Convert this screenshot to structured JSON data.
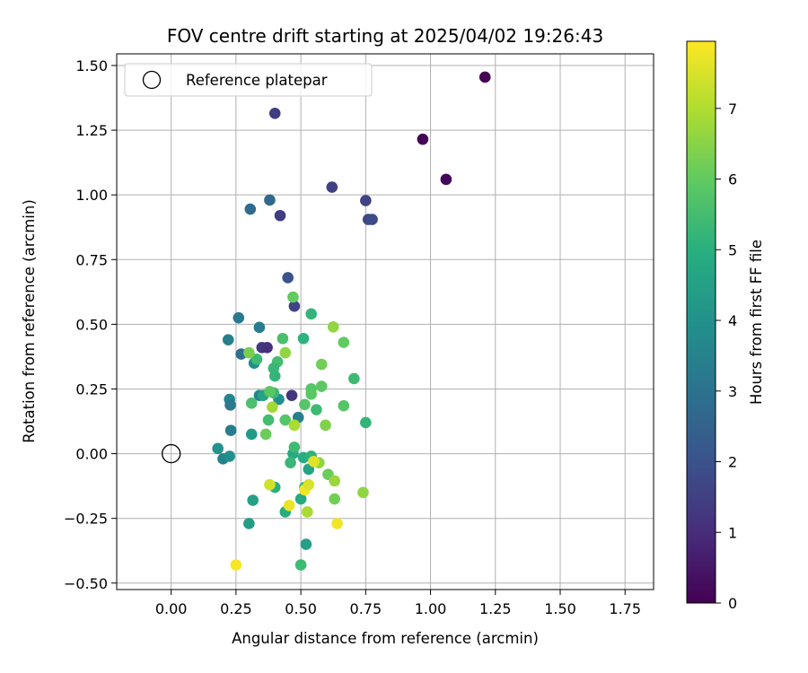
{
  "chart_data": {
    "type": "scatter",
    "title": "FOV centre drift starting at 2025/04/02 19:26:43",
    "xlabel": "Angular distance from reference (arcmin)",
    "ylabel": "Rotation from reference (arcmin)",
    "xlim": [
      -0.21,
      1.86
    ],
    "ylim": [
      -0.525,
      1.545
    ],
    "xticks": [
      "0.00",
      "0.25",
      "0.50",
      "0.75",
      "1.00",
      "1.25",
      "1.50",
      "1.75"
    ],
    "xtick_values": [
      0,
      0.25,
      0.5,
      0.75,
      1.0,
      1.25,
      1.5,
      1.75
    ],
    "yticks": [
      "−0.50",
      "−0.25",
      "0.00",
      "0.25",
      "0.50",
      "0.75",
      "1.00",
      "1.25",
      "1.50"
    ],
    "ytick_values": [
      -0.5,
      -0.25,
      0,
      0.25,
      0.5,
      0.75,
      1.0,
      1.25,
      1.5
    ],
    "grid": true,
    "legend": {
      "placement": "top-left",
      "label": "Reference platepar"
    },
    "reference_point": {
      "x": 0.0,
      "y": 0.0
    },
    "colorbar": {
      "label": "Hours from first FF file",
      "colormap": "viridis",
      "range": [
        0,
        7.95
      ],
      "ticks": [
        "0",
        "1",
        "2",
        "3",
        "4",
        "5",
        "6",
        "7"
      ],
      "tick_values": [
        0,
        1,
        2,
        3,
        4,
        5,
        6,
        7
      ]
    },
    "points": [
      {
        "x": 1.21,
        "y": 1.455,
        "h": 0.0
      },
      {
        "x": 0.97,
        "y": 1.215,
        "h": 0.1
      },
      {
        "x": 1.06,
        "y": 1.06,
        "h": 0.15
      },
      {
        "x": 0.4,
        "y": 1.315,
        "h": 1.4
      },
      {
        "x": 0.62,
        "y": 1.03,
        "h": 1.5
      },
      {
        "x": 0.75,
        "y": 0.978,
        "h": 1.6
      },
      {
        "x": 0.42,
        "y": 0.92,
        "h": 1.4
      },
      {
        "x": 0.76,
        "y": 0.905,
        "h": 1.7
      },
      {
        "x": 0.775,
        "y": 0.905,
        "h": 1.8
      },
      {
        "x": 0.38,
        "y": 0.98,
        "h": 2.7
      },
      {
        "x": 0.305,
        "y": 0.945,
        "h": 2.8
      },
      {
        "x": 0.45,
        "y": 0.68,
        "h": 2.0
      },
      {
        "x": 0.475,
        "y": 0.57,
        "h": 1.6
      },
      {
        "x": 0.35,
        "y": 0.41,
        "h": 1.3
      },
      {
        "x": 0.37,
        "y": 0.41,
        "h": 1.1
      },
      {
        "x": 0.465,
        "y": 0.225,
        "h": 1.2
      },
      {
        "x": 0.26,
        "y": 0.525,
        "h": 3.2
      },
      {
        "x": 0.34,
        "y": 0.488,
        "h": 3.3
      },
      {
        "x": 0.22,
        "y": 0.44,
        "h": 3.4
      },
      {
        "x": 0.27,
        "y": 0.385,
        "h": 2.9
      },
      {
        "x": 0.32,
        "y": 0.35,
        "h": 3.8
      },
      {
        "x": 0.225,
        "y": 0.21,
        "h": 3.6
      },
      {
        "x": 0.228,
        "y": 0.188,
        "h": 3.2
      },
      {
        "x": 0.23,
        "y": 0.09,
        "h": 3.3
      },
      {
        "x": 0.34,
        "y": 0.225,
        "h": 3.6
      },
      {
        "x": 0.355,
        "y": 0.225,
        "h": 4.6
      },
      {
        "x": 0.415,
        "y": 0.21,
        "h": 3.9
      },
      {
        "x": 0.49,
        "y": 0.14,
        "h": 3.4
      },
      {
        "x": 0.18,
        "y": 0.02,
        "h": 4.0
      },
      {
        "x": 0.2,
        "y": -0.02,
        "h": 3.5
      },
      {
        "x": 0.225,
        "y": -0.01,
        "h": 3.9
      },
      {
        "x": 0.31,
        "y": 0.075,
        "h": 4.3
      },
      {
        "x": 0.315,
        "y": -0.18,
        "h": 4.5
      },
      {
        "x": 0.3,
        "y": -0.27,
        "h": 4.4
      },
      {
        "x": 0.4,
        "y": -0.13,
        "h": 5.0
      },
      {
        "x": 0.44,
        "y": -0.225,
        "h": 4.9
      },
      {
        "x": 0.5,
        "y": -0.175,
        "h": 4.8
      },
      {
        "x": 0.52,
        "y": -0.35,
        "h": 4.5
      },
      {
        "x": 0.5,
        "y": -0.43,
        "h": 5.4
      },
      {
        "x": 0.47,
        "y": 0.0,
        "h": 4.8
      },
      {
        "x": 0.51,
        "y": -0.015,
        "h": 4.9
      },
      {
        "x": 0.53,
        "y": -0.06,
        "h": 4.6
      },
      {
        "x": 0.54,
        "y": -0.01,
        "h": 5.1
      },
      {
        "x": 0.46,
        "y": -0.035,
        "h": 5.3
      },
      {
        "x": 0.475,
        "y": 0.025,
        "h": 5.4
      },
      {
        "x": 0.515,
        "y": -0.13,
        "h": 5.1
      },
      {
        "x": 0.375,
        "y": 0.13,
        "h": 5.5
      },
      {
        "x": 0.395,
        "y": 0.235,
        "h": 5.3
      },
      {
        "x": 0.38,
        "y": 0.24,
        "h": 5.9
      },
      {
        "x": 0.31,
        "y": 0.195,
        "h": 5.6
      },
      {
        "x": 0.365,
        "y": 0.075,
        "h": 6.1
      },
      {
        "x": 0.44,
        "y": 0.13,
        "h": 5.8
      },
      {
        "x": 0.43,
        "y": 0.445,
        "h": 5.6
      },
      {
        "x": 0.41,
        "y": 0.355,
        "h": 5.5
      },
      {
        "x": 0.395,
        "y": 0.33,
        "h": 5.3
      },
      {
        "x": 0.4,
        "y": 0.3,
        "h": 5.2
      },
      {
        "x": 0.33,
        "y": 0.365,
        "h": 5.4
      },
      {
        "x": 0.3,
        "y": 0.39,
        "h": 6.3
      },
      {
        "x": 0.44,
        "y": 0.39,
        "h": 6.6
      },
      {
        "x": 0.51,
        "y": 0.445,
        "h": 5.1
      },
      {
        "x": 0.47,
        "y": 0.605,
        "h": 6.0
      },
      {
        "x": 0.54,
        "y": 0.54,
        "h": 5.2
      },
      {
        "x": 0.625,
        "y": 0.49,
        "h": 6.6
      },
      {
        "x": 0.665,
        "y": 0.43,
        "h": 6.0
      },
      {
        "x": 0.58,
        "y": 0.345,
        "h": 6.2
      },
      {
        "x": 0.705,
        "y": 0.29,
        "h": 5.4
      },
      {
        "x": 0.54,
        "y": 0.25,
        "h": 5.8
      },
      {
        "x": 0.58,
        "y": 0.26,
        "h": 5.9
      },
      {
        "x": 0.54,
        "y": 0.23,
        "h": 5.9
      },
      {
        "x": 0.515,
        "y": 0.19,
        "h": 5.8
      },
      {
        "x": 0.56,
        "y": 0.17,
        "h": 5.4
      },
      {
        "x": 0.665,
        "y": 0.185,
        "h": 5.8
      },
      {
        "x": 0.75,
        "y": 0.12,
        "h": 5.2
      },
      {
        "x": 0.595,
        "y": 0.11,
        "h": 6.4
      },
      {
        "x": 0.475,
        "y": 0.11,
        "h": 6.9
      },
      {
        "x": 0.39,
        "y": 0.18,
        "h": 6.8
      },
      {
        "x": 0.57,
        "y": -0.035,
        "h": 6.6
      },
      {
        "x": 0.605,
        "y": -0.08,
        "h": 6.1
      },
      {
        "x": 0.63,
        "y": -0.105,
        "h": 6.7
      },
      {
        "x": 0.63,
        "y": -0.175,
        "h": 6.2
      },
      {
        "x": 0.74,
        "y": -0.15,
        "h": 6.6
      },
      {
        "x": 0.525,
        "y": -0.225,
        "h": 6.9
      },
      {
        "x": 0.55,
        "y": -0.03,
        "h": 7.6
      },
      {
        "x": 0.38,
        "y": -0.12,
        "h": 7.4
      },
      {
        "x": 0.455,
        "y": -0.2,
        "h": 7.7
      },
      {
        "x": 0.515,
        "y": -0.14,
        "h": 7.8
      },
      {
        "x": 0.53,
        "y": -0.12,
        "h": 7.5
      },
      {
        "x": 0.64,
        "y": -0.27,
        "h": 7.8
      },
      {
        "x": 0.25,
        "y": -0.43,
        "h": 7.9
      }
    ]
  }
}
